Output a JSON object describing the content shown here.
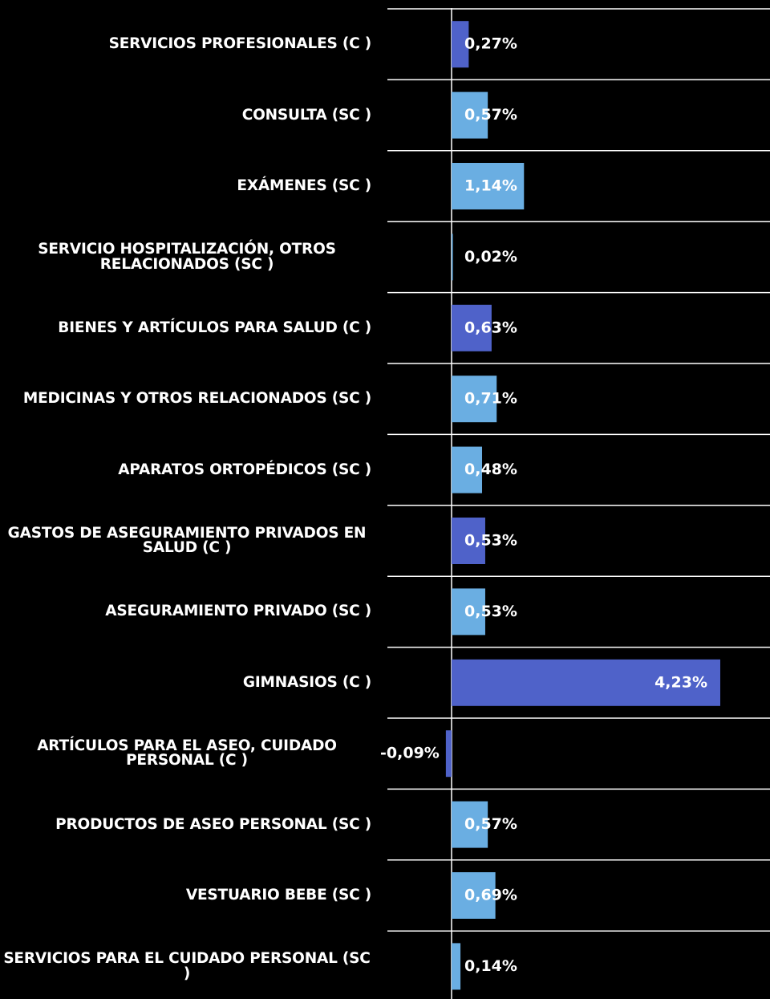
{
  "chart_data": {
    "type": "barh",
    "categories": [
      "SERVICIOS PROFESIONALES (C )",
      "CONSULTA (SC )",
      "EXÁMENES (SC )",
      "SERVICIO HOSPITALIZACIÓN, OTROS RELACIONADOS (SC )",
      "BIENES Y ARTÍCULOS PARA SALUD (C )",
      "MEDICINAS Y OTROS RELACIONADOS (SC )",
      "APARATOS ORTOPÉDICOS (SC )",
      "GASTOS DE ASEGURAMIENTO PRIVADOS EN SALUD (C )",
      "ASEGURAMIENTO PRIVADO (SC )",
      "GIMNASIOS (C )",
      "ARTÍCULOS PARA EL ASEO, CUIDADO PERSONAL (C )",
      "PRODUCTOS DE ASEO PERSONAL (SC )",
      "VESTUARIO BEBE (SC )",
      "SERVICIOS PARA EL CUIDADO PERSONAL (SC )"
    ],
    "values": [
      0.27,
      0.57,
      1.14,
      0.02,
      0.63,
      0.71,
      0.48,
      0.53,
      0.53,
      4.23,
      -0.09,
      0.57,
      0.69,
      0.14
    ],
    "value_labels": [
      "0,27%",
      "0,57%",
      "1,14%",
      "0,02%",
      "0,63%",
      "0,71%",
      "0,48%",
      "0,53%",
      "0,53%",
      "4,23%",
      "-0,09%",
      "0,57%",
      "0,69%",
      "0,14%"
    ],
    "colors": [
      "#4f62c9",
      "#6aaee2",
      "#6aaee2",
      "#6aaee2",
      "#4f62c9",
      "#6aaee2",
      "#6aaee2",
      "#4f62c9",
      "#6aaee2",
      "#4f62c9",
      "#4f62c9",
      "#6aaee2",
      "#6aaee2",
      "#6aaee2"
    ]
  }
}
